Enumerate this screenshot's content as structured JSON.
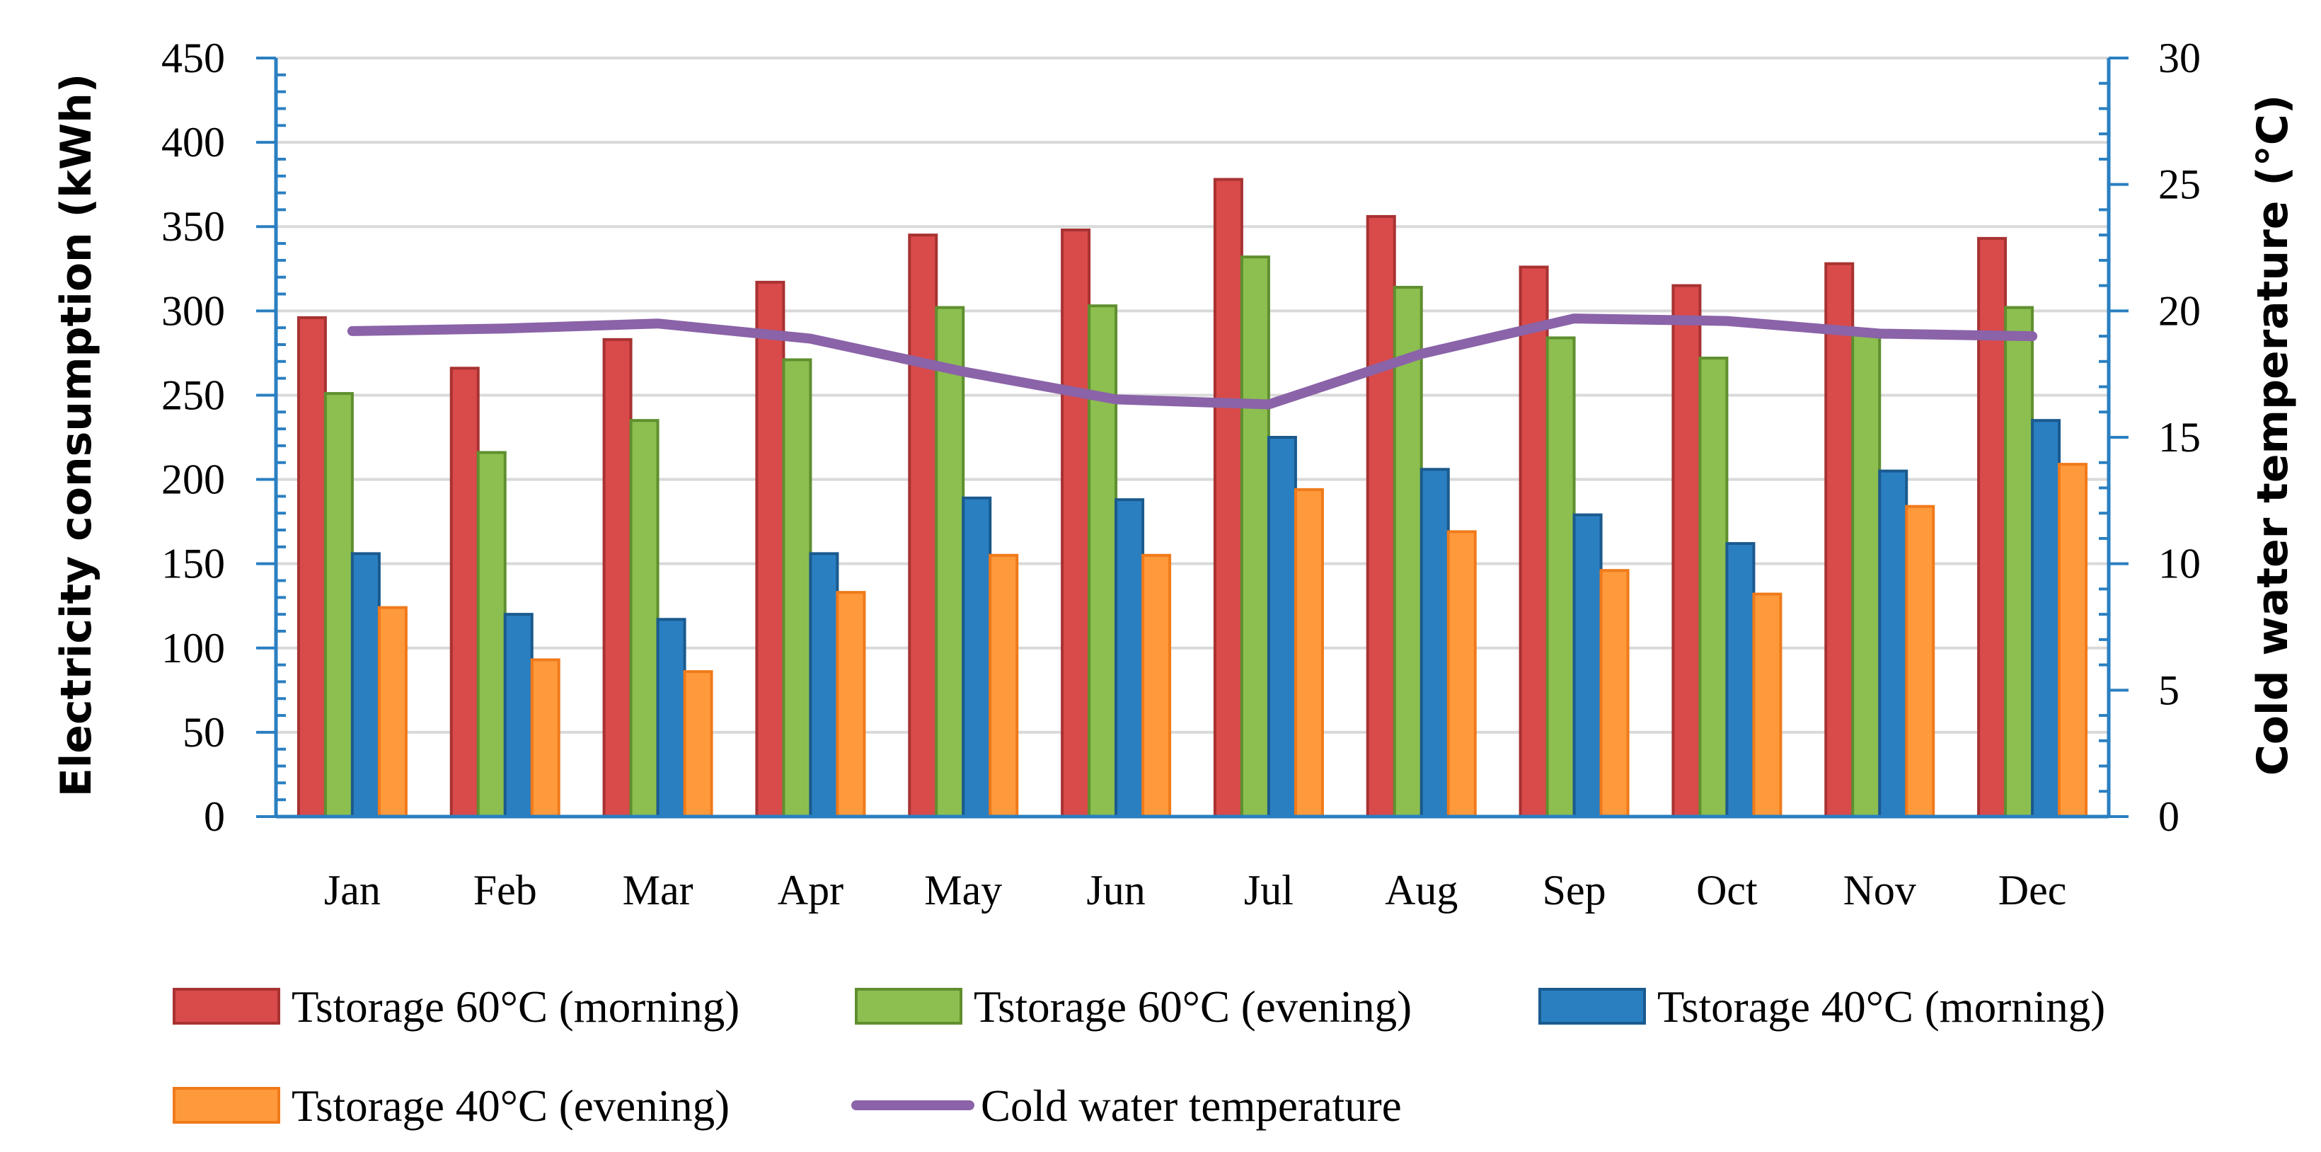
{
  "chart_data": {
    "type": "bar",
    "title": "",
    "categories": [
      "Jan",
      "Feb",
      "Mar",
      "Apr",
      "May",
      "Jun",
      "Jul",
      "Aug",
      "Sep",
      "Oct",
      "Nov",
      "Dec"
    ],
    "ylabel": "Electricity consumption (kWh)",
    "y2label": "Cold water temperature (°C)",
    "ylim": [
      0,
      450
    ],
    "yticks": [
      0,
      50,
      100,
      150,
      200,
      250,
      300,
      350,
      400,
      450
    ],
    "y2lim": [
      0,
      30
    ],
    "y2ticks": [
      0,
      5,
      10,
      15,
      20,
      25,
      30
    ],
    "grid": true,
    "legend_position": "bottom",
    "series": [
      {
        "name": "Tstorage 60°C (morning)",
        "type": "bar",
        "axis": "left",
        "color": "#d94a4a",
        "stroke": "#a83232",
        "values": [
          296,
          266,
          283,
          317,
          345,
          348,
          378,
          356,
          326,
          315,
          328,
          343
        ]
      },
      {
        "name": "Tstorage 60°C (evening)",
        "type": "bar",
        "axis": "left",
        "color": "#8cbf4f",
        "stroke": "#5f8f2f",
        "values": [
          251,
          216,
          235,
          271,
          302,
          303,
          332,
          314,
          284,
          272,
          286,
          302
        ]
      },
      {
        "name": "Tstorage 40°C (morning)",
        "type": "bar",
        "axis": "left",
        "color": "#2a7fc1",
        "stroke": "#1a5a8e",
        "values": [
          156,
          120,
          117,
          156,
          189,
          188,
          225,
          206,
          179,
          162,
          205,
          235
        ]
      },
      {
        "name": "Tstorage 40°C (evening)",
        "type": "bar",
        "axis": "left",
        "color": "#ff9a3c",
        "stroke": "#f07a1a",
        "values": [
          124,
          93,
          86,
          133,
          155,
          155,
          194,
          169,
          146,
          132,
          184,
          209
        ]
      },
      {
        "name": "Cold water temperature",
        "type": "line",
        "axis": "right",
        "color": "#8a63a8",
        "values": [
          19.2,
          19.3,
          19.5,
          18.9,
          17.6,
          16.5,
          16.3,
          18.3,
          19.7,
          19.6,
          19.1,
          19.0
        ]
      }
    ]
  }
}
